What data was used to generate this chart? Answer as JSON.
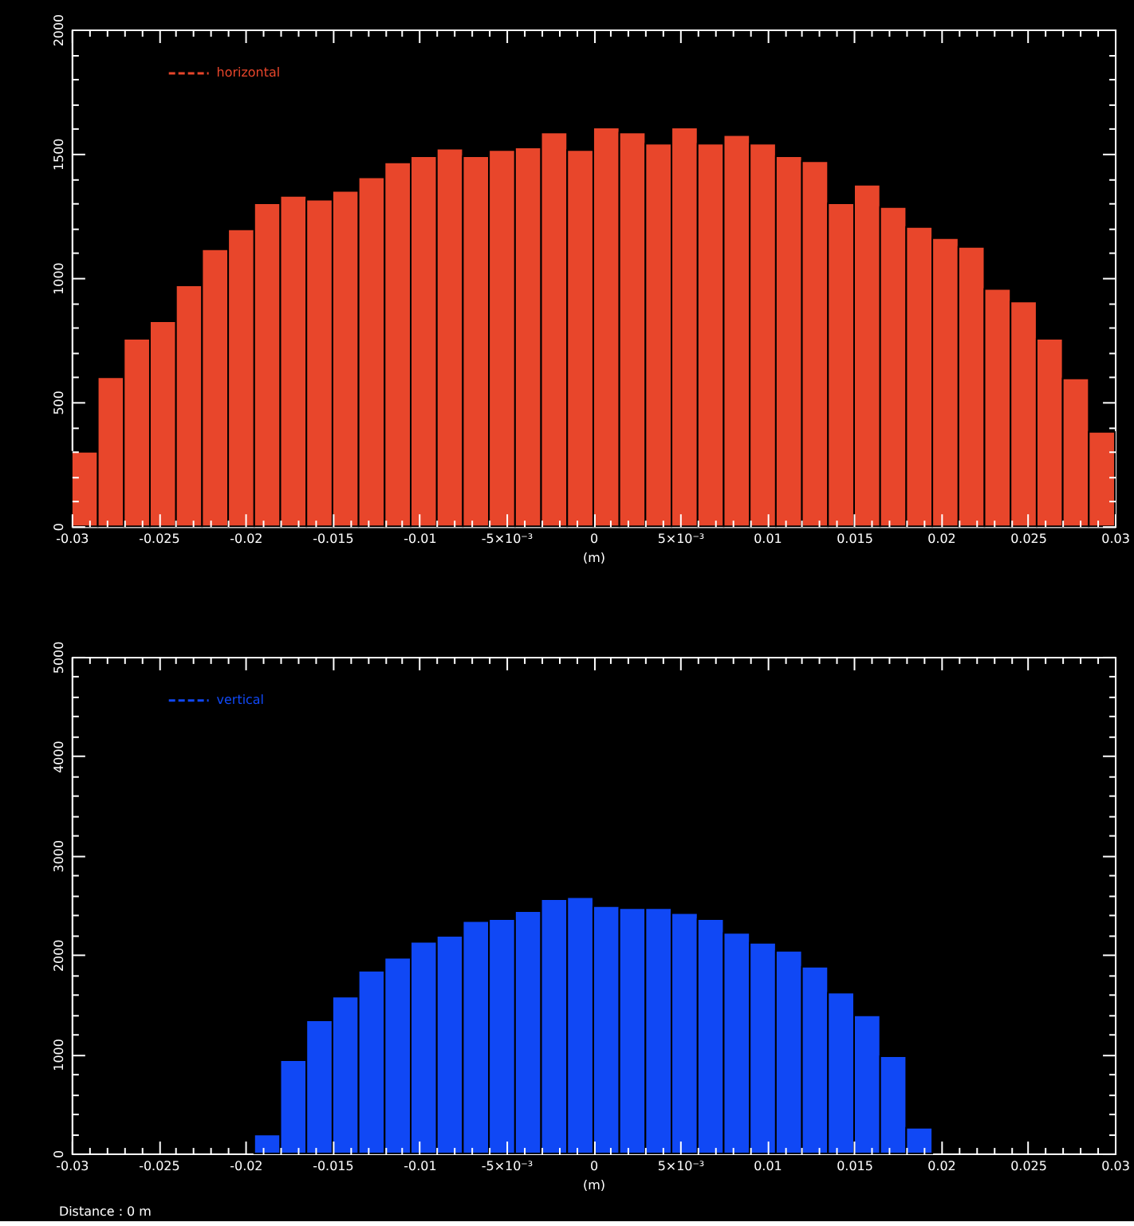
{
  "chart_data": [
    {
      "type": "histogram",
      "xlabel": "(m)",
      "legend": "top left",
      "bins": [
        -0.03,
        -0.0285,
        -0.027,
        -0.0255,
        -0.024,
        -0.0225,
        -0.021,
        -0.0195,
        -0.018,
        -0.0165,
        -0.015,
        -0.0135,
        -0.012,
        -0.0105,
        -0.009,
        -0.0075,
        -0.006,
        -0.0045,
        -0.003,
        -0.0015,
        0,
        0.0015,
        0.003,
        0.0045,
        0.006,
        0.0075,
        0.009,
        0.0105,
        0.012,
        0.0135,
        0.015,
        0.0165,
        0.018,
        0.0195,
        0.021,
        0.0225,
        0.024,
        0.0255,
        0.027,
        0.0285,
        0.03
      ],
      "series": [
        {
          "name": "horizontal",
          "color": "#e8462b",
          "values": [
            300,
            600,
            755,
            825,
            970,
            1115,
            1195,
            1300,
            1330,
            1315,
            1350,
            1405,
            1465,
            1490,
            1520,
            1490,
            1515,
            1525,
            1585,
            1515,
            1605,
            1585,
            1540,
            1605,
            1540,
            1575,
            1540,
            1490,
            1470,
            1300,
            1375,
            1285,
            1205,
            1160,
            1125,
            955,
            905,
            755,
            595,
            380
          ]
        }
      ],
      "xlim": [
        -0.03,
        0.03
      ],
      "xticks": [
        -0.03,
        {
          "value": -0.029,
          "label": null
        },
        {
          "value": -0.028,
          "label": null
        },
        {
          "value": -0.027,
          "label": null
        },
        {
          "value": -0.026,
          "label": null
        },
        -0.025,
        {
          "value": -0.024,
          "label": null
        },
        {
          "value": -0.023,
          "label": null
        },
        {
          "value": -0.022,
          "label": null
        },
        {
          "value": -0.021,
          "label": null
        },
        -0.02,
        {
          "value": -0.019,
          "label": null
        },
        {
          "value": -0.018,
          "label": null
        },
        {
          "value": -0.017,
          "label": null
        },
        {
          "value": -0.016,
          "label": null
        },
        -0.015,
        {
          "value": -0.014,
          "label": null
        },
        {
          "value": -0.013,
          "label": null
        },
        {
          "value": -0.012,
          "label": null
        },
        {
          "value": -0.011,
          "label": null
        },
        -0.01,
        {
          "value": -0.009,
          "label": null
        },
        {
          "value": -0.008,
          "label": null
        },
        {
          "value": -0.007,
          "label": null
        },
        {
          "value": -0.006,
          "label": null
        },
        {
          "value": -0.005,
          "label": "-5×10⁻³"
        },
        {
          "value": -0.004,
          "label": null
        },
        {
          "value": -0.003,
          "label": null
        },
        {
          "value": -0.002,
          "label": null
        },
        {
          "value": -0.001,
          "label": null
        },
        0,
        {
          "value": 0.001,
          "label": null
        },
        {
          "value": 0.002,
          "label": null
        },
        {
          "value": 0.003,
          "label": null
        },
        {
          "value": 0.004,
          "label": null
        },
        {
          "value": 0.005,
          "label": "5×10⁻³"
        },
        {
          "value": 0.006,
          "label": null
        },
        {
          "value": 0.007,
          "label": null
        },
        {
          "value": 0.008,
          "label": null
        },
        {
          "value": 0.009,
          "label": null
        },
        0.01,
        {
          "value": 0.011,
          "label": null
        },
        {
          "value": 0.012,
          "label": null
        },
        {
          "value": 0.013,
          "label": null
        },
        {
          "value": 0.014,
          "label": null
        },
        0.015,
        {
          "value": 0.016,
          "label": null
        },
        {
          "value": 0.017,
          "label": null
        },
        {
          "value": 0.018,
          "label": null
        },
        {
          "value": 0.019,
          "label": null
        },
        0.02,
        {
          "value": 0.021,
          "label": null
        },
        {
          "value": 0.022,
          "label": null
        },
        {
          "value": 0.023,
          "label": null
        },
        {
          "value": 0.024,
          "label": null
        },
        0.025,
        {
          "value": 0.026,
          "label": null
        },
        {
          "value": 0.027,
          "label": null
        },
        {
          "value": 0.028,
          "label": null
        },
        {
          "value": 0.029,
          "label": null
        },
        0.03
      ],
      "ylim": [
        0,
        2000
      ],
      "yticks": [
        0,
        {
          "value": 100,
          "label": null
        },
        {
          "value": 200,
          "label": null
        },
        {
          "value": 300,
          "label": null
        },
        {
          "value": 400,
          "label": null
        },
        500,
        {
          "value": 600,
          "label": null
        },
        {
          "value": 700,
          "label": null
        },
        {
          "value": 800,
          "label": null
        },
        {
          "value": 900,
          "label": null
        },
        1000,
        {
          "value": 1100,
          "label": null
        },
        {
          "value": 1200,
          "label": null
        },
        {
          "value": 1300,
          "label": null
        },
        {
          "value": 1400,
          "label": null
        },
        1500,
        {
          "value": 1600,
          "label": null
        },
        {
          "value": 1700,
          "label": null
        },
        {
          "value": 1800,
          "label": null
        },
        {
          "value": 1900,
          "label": null
        },
        2000
      ]
    },
    {
      "type": "histogram",
      "xlabel": "(m)",
      "legend": "top left",
      "annotations": [
        "Distance : 0 m"
      ],
      "bins": [
        -0.0195,
        -0.018,
        -0.0165,
        -0.015,
        -0.0135,
        -0.012,
        -0.0105,
        -0.009,
        -0.0075,
        -0.006,
        -0.0045,
        -0.003,
        -0.0015,
        0,
        0.0015,
        0.003,
        0.0045,
        0.006,
        0.0075,
        0.009,
        0.0105,
        0.012,
        0.0135,
        0.015,
        0.0165,
        0.018,
        0.0195
      ],
      "series": [
        {
          "name": "vertical",
          "color": "#1048f5",
          "values": [
            190,
            940,
            1340,
            1580,
            1840,
            1970,
            2130,
            2190,
            2340,
            2360,
            2440,
            2560,
            2580,
            2490,
            2470,
            2470,
            2420,
            2360,
            2220,
            2120,
            2040,
            1880,
            1620,
            1390,
            980,
            260
          ]
        }
      ],
      "xlim": [
        -0.03,
        0.03
      ],
      "xticks": [
        -0.03,
        {
          "value": -0.029,
          "label": null
        },
        {
          "value": -0.028,
          "label": null
        },
        {
          "value": -0.027,
          "label": null
        },
        {
          "value": -0.026,
          "label": null
        },
        -0.025,
        {
          "value": -0.024,
          "label": null
        },
        {
          "value": -0.023,
          "label": null
        },
        {
          "value": -0.022,
          "label": null
        },
        {
          "value": -0.021,
          "label": null
        },
        -0.02,
        {
          "value": -0.019,
          "label": null
        },
        {
          "value": -0.018,
          "label": null
        },
        {
          "value": -0.017,
          "label": null
        },
        {
          "value": -0.016,
          "label": null
        },
        -0.015,
        {
          "value": -0.014,
          "label": null
        },
        {
          "value": -0.013,
          "label": null
        },
        {
          "value": -0.012,
          "label": null
        },
        {
          "value": -0.011,
          "label": null
        },
        -0.01,
        {
          "value": -0.009,
          "label": null
        },
        {
          "value": -0.008,
          "label": null
        },
        {
          "value": -0.007,
          "label": null
        },
        {
          "value": -0.006,
          "label": null
        },
        {
          "value": -0.005,
          "label": "-5×10⁻³"
        },
        {
          "value": -0.004,
          "label": null
        },
        {
          "value": -0.003,
          "label": null
        },
        {
          "value": -0.002,
          "label": null
        },
        {
          "value": -0.001,
          "label": null
        },
        0,
        {
          "value": 0.001,
          "label": null
        },
        {
          "value": 0.002,
          "label": null
        },
        {
          "value": 0.003,
          "label": null
        },
        {
          "value": 0.004,
          "label": null
        },
        {
          "value": 0.005,
          "label": "5×10⁻³"
        },
        {
          "value": 0.006,
          "label": null
        },
        {
          "value": 0.007,
          "label": null
        },
        {
          "value": 0.008,
          "label": null
        },
        {
          "value": 0.009,
          "label": null
        },
        0.01,
        {
          "value": 0.011,
          "label": null
        },
        {
          "value": 0.012,
          "label": null
        },
        {
          "value": 0.013,
          "label": null
        },
        {
          "value": 0.014,
          "label": null
        },
        0.015,
        {
          "value": 0.016,
          "label": null
        },
        {
          "value": 0.017,
          "label": null
        },
        {
          "value": 0.018,
          "label": null
        },
        {
          "value": 0.019,
          "label": null
        },
        0.02,
        {
          "value": 0.021,
          "label": null
        },
        {
          "value": 0.022,
          "label": null
        },
        {
          "value": 0.023,
          "label": null
        },
        {
          "value": 0.024,
          "label": null
        },
        0.025,
        {
          "value": 0.026,
          "label": null
        },
        {
          "value": 0.027,
          "label": null
        },
        {
          "value": 0.028,
          "label": null
        },
        {
          "value": 0.029,
          "label": null
        },
        0.03
      ],
      "ylim": [
        0,
        5000
      ],
      "yticks": [
        0,
        {
          "value": 200,
          "label": null
        },
        {
          "value": 400,
          "label": null
        },
        {
          "value": 600,
          "label": null
        },
        {
          "value": 800,
          "label": null
        },
        1000,
        {
          "value": 1200,
          "label": null
        },
        {
          "value": 1400,
          "label": null
        },
        {
          "value": 1600,
          "label": null
        },
        {
          "value": 1800,
          "label": null
        },
        2000,
        {
          "value": 2200,
          "label": null
        },
        {
          "value": 2400,
          "label": null
        },
        {
          "value": 2600,
          "label": null
        },
        {
          "value": 2800,
          "label": null
        },
        3000,
        {
          "value": 3200,
          "label": null
        },
        {
          "value": 3400,
          "label": null
        },
        {
          "value": 3600,
          "label": null
        },
        {
          "value": 3800,
          "label": null
        },
        4000,
        {
          "value": 4200,
          "label": null
        },
        {
          "value": 4400,
          "label": null
        },
        {
          "value": 4600,
          "label": null
        },
        {
          "value": 4800,
          "label": null
        },
        5000
      ]
    }
  ]
}
